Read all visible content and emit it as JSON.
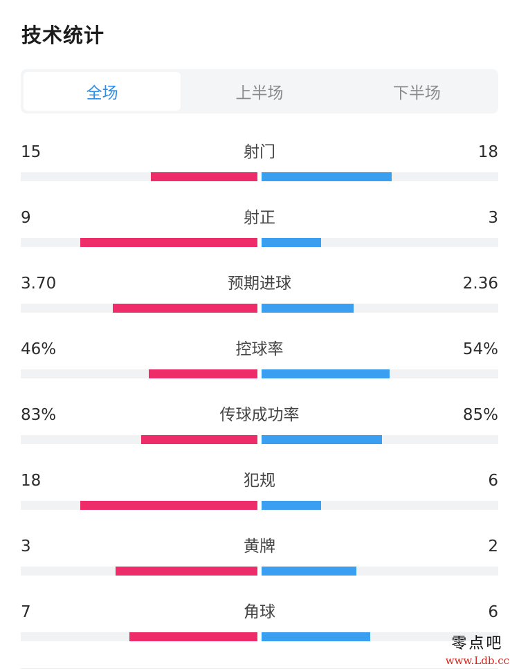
{
  "header": {
    "title": "技术统计"
  },
  "tabs": [
    {
      "label": "全场",
      "active": true
    },
    {
      "label": "上半场",
      "active": false
    },
    {
      "label": "下半场",
      "active": false
    }
  ],
  "colors": {
    "home": "#ef2c6a",
    "away": "#3a9ff0",
    "accent": "#2f8fe6"
  },
  "stats": [
    {
      "label": "射门",
      "home": "15",
      "away": "18",
      "home_ratio": 0.45,
      "away_ratio": 0.55
    },
    {
      "label": "射正",
      "home": "9",
      "away": "3",
      "home_ratio": 0.75,
      "away_ratio": 0.25
    },
    {
      "label": "预期进球",
      "home": "3.70",
      "away": "2.36",
      "home_ratio": 0.61,
      "away_ratio": 0.39
    },
    {
      "label": "控球率",
      "home": "46%",
      "away": "54%",
      "home_ratio": 0.46,
      "away_ratio": 0.54
    },
    {
      "label": "传球成功率",
      "home": "83%",
      "away": "85%",
      "home_ratio": 0.49,
      "away_ratio": 0.51
    },
    {
      "label": "犯规",
      "home": "18",
      "away": "6",
      "home_ratio": 0.75,
      "away_ratio": 0.25
    },
    {
      "label": "黄牌",
      "home": "3",
      "away": "2",
      "home_ratio": 0.6,
      "away_ratio": 0.4
    },
    {
      "label": "角球",
      "home": "7",
      "away": "6",
      "home_ratio": 0.54,
      "away_ratio": 0.46
    }
  ],
  "watermark": {
    "name": "零点吧",
    "url": "www.Ldb.cc"
  }
}
